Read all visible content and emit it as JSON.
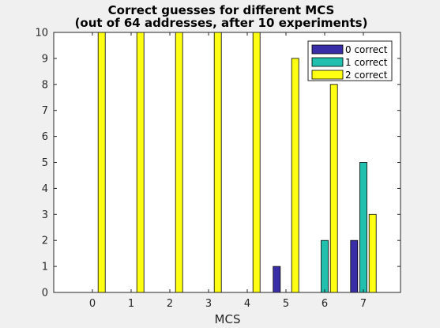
{
  "chart_data": {
    "type": "bar",
    "title": [
      "Correct guesses for different MCS",
      "(out of 64 addresses, after 10 experiments)"
    ],
    "xlabel": "MCS",
    "ylabel": "",
    "categories": [
      "0",
      "1",
      "2",
      "3",
      "4",
      "5",
      "6",
      "7"
    ],
    "ylim": [
      0,
      10
    ],
    "yticks": [
      "0",
      "1",
      "2",
      "3",
      "4",
      "5",
      "6",
      "7",
      "8",
      "9",
      "10"
    ],
    "grid": false,
    "legend_position": "top-right",
    "series": [
      {
        "name": "0 correct",
        "color": "#3a2ea8",
        "values": [
          0,
          0,
          0,
          0,
          0,
          1,
          0,
          2
        ]
      },
      {
        "name": "1 correct",
        "color": "#20bfae",
        "values": [
          0,
          0,
          0,
          0,
          0,
          0,
          2,
          5
        ]
      },
      {
        "name": "2 correct",
        "color": "#ffff14",
        "values": [
          10,
          10,
          10,
          10,
          10,
          9,
          8,
          3
        ]
      }
    ]
  }
}
